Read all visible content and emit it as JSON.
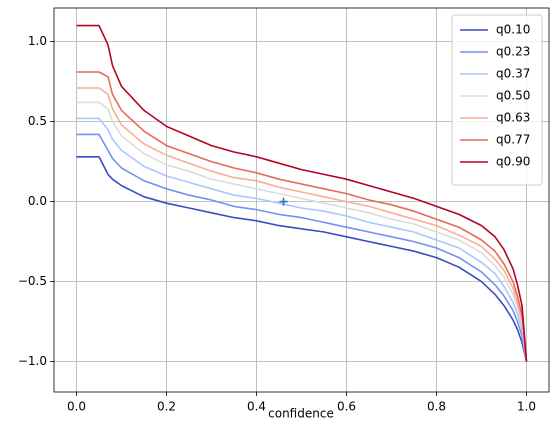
{
  "chart_data": {
    "type": "line",
    "xlabel": "confidence",
    "x": [
      0,
      0.05,
      0.07,
      0.08,
      0.1,
      0.15,
      0.2,
      0.25,
      0.3,
      0.35,
      0.4,
      0.45,
      0.5,
      0.55,
      0.6,
      0.65,
      0.7,
      0.75,
      0.8,
      0.85,
      0.9,
      0.93,
      0.95,
      0.97,
      0.98,
      0.99,
      1.0
    ],
    "series": [
      {
        "name": "q0.10",
        "color": "#3b4cc0",
        "values": [
          0.28,
          0.28,
          0.17,
          0.14,
          0.1,
          0.03,
          -0.01,
          -0.04,
          -0.07,
          -0.1,
          -0.12,
          -0.15,
          -0.17,
          -0.19,
          -0.22,
          -0.25,
          -0.28,
          -0.31,
          -0.35,
          -0.41,
          -0.5,
          -0.58,
          -0.65,
          -0.74,
          -0.8,
          -0.88,
          -1.0
        ]
      },
      {
        "name": "q0.23",
        "color": "#6f92f3",
        "values": [
          0.42,
          0.42,
          0.32,
          0.27,
          0.21,
          0.13,
          0.08,
          0.04,
          0.01,
          -0.03,
          -0.05,
          -0.08,
          -0.1,
          -0.13,
          -0.16,
          -0.19,
          -0.22,
          -0.25,
          -0.29,
          -0.35,
          -0.44,
          -0.52,
          -0.59,
          -0.68,
          -0.75,
          -0.84,
          -1.0
        ]
      },
      {
        "name": "q0.37",
        "color": "#aac7fd",
        "values": [
          0.52,
          0.52,
          0.45,
          0.39,
          0.32,
          0.22,
          0.16,
          0.12,
          0.08,
          0.04,
          0.02,
          -0.01,
          -0.04,
          -0.06,
          -0.09,
          -0.13,
          -0.16,
          -0.19,
          -0.24,
          -0.29,
          -0.38,
          -0.45,
          -0.53,
          -0.63,
          -0.7,
          -0.8,
          -1.0
        ]
      },
      {
        "name": "q0.50",
        "color": "#dddcdc",
        "values": [
          0.62,
          0.62,
          0.58,
          0.5,
          0.41,
          0.3,
          0.23,
          0.19,
          0.14,
          0.11,
          0.08,
          0.05,
          0.02,
          -0.01,
          -0.04,
          -0.07,
          -0.11,
          -0.14,
          -0.19,
          -0.24,
          -0.32,
          -0.4,
          -0.47,
          -0.58,
          -0.66,
          -0.76,
          -1.0
        ]
      },
      {
        "name": "q0.63",
        "color": "#f7b093",
        "values": [
          0.71,
          0.71,
          0.67,
          0.58,
          0.48,
          0.36,
          0.29,
          0.24,
          0.19,
          0.15,
          0.13,
          0.09,
          0.06,
          0.03,
          0.0,
          -0.03,
          -0.07,
          -0.11,
          -0.15,
          -0.21,
          -0.28,
          -0.36,
          -0.43,
          -0.54,
          -0.63,
          -0.74,
          -1.0
        ]
      },
      {
        "name": "q0.77",
        "color": "#e36c55",
        "values": [
          0.81,
          0.81,
          0.78,
          0.67,
          0.57,
          0.44,
          0.35,
          0.3,
          0.25,
          0.21,
          0.18,
          0.14,
          0.11,
          0.08,
          0.05,
          0.01,
          -0.02,
          -0.06,
          -0.11,
          -0.16,
          -0.24,
          -0.31,
          -0.39,
          -0.5,
          -0.59,
          -0.71,
          -1.0
        ]
      },
      {
        "name": "q0.90",
        "color": "#b40426",
        "values": [
          1.1,
          1.1,
          0.98,
          0.85,
          0.72,
          0.57,
          0.47,
          0.41,
          0.35,
          0.31,
          0.28,
          0.24,
          0.2,
          0.17,
          0.14,
          0.1,
          0.06,
          0.02,
          -0.03,
          -0.08,
          -0.15,
          -0.22,
          -0.3,
          -0.42,
          -0.52,
          -0.65,
          -1.0
        ]
      }
    ],
    "marker": {
      "x": 0.46,
      "y": 0,
      "color": "#1f77b4"
    },
    "xlim": [
      -0.05,
      1.05
    ],
    "ylim": [
      -1.19,
      1.21
    ],
    "xticks": [
      {
        "value": 0,
        "label": "0.0"
      },
      0.2,
      0.4,
      0.6,
      0.8,
      {
        "value": 1,
        "label": "1.0"
      }
    ],
    "yticks": [
      {
        "value": -1,
        "label": "−1.0"
      },
      {
        "value": -0.5,
        "label": "−0.5"
      },
      {
        "value": 0,
        "label": "0.0"
      },
      0.5,
      {
        "value": 1,
        "label": "1.0"
      }
    ],
    "grid": true,
    "legend": "upper right"
  }
}
